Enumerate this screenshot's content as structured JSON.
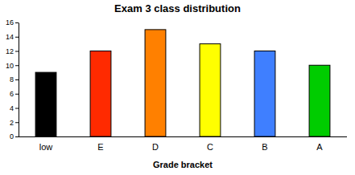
{
  "chart_data": {
    "type": "bar",
    "title": "Exam 3 class distribution",
    "x_label": "Grade bracket",
    "categories": [
      "low",
      "E",
      "D",
      "C",
      "B",
      "A"
    ],
    "values": [
      9,
      12,
      15,
      13,
      12,
      10
    ],
    "colors": [
      "#000000",
      "#ff2a00",
      "#ff8000",
      "#ffff00",
      "#3f7fff",
      "#00cc00"
    ],
    "ylim": [
      0,
      16
    ],
    "yticks": [
      0,
      2,
      4,
      6,
      8,
      10,
      12,
      14,
      16
    ],
    "grid": false
  }
}
